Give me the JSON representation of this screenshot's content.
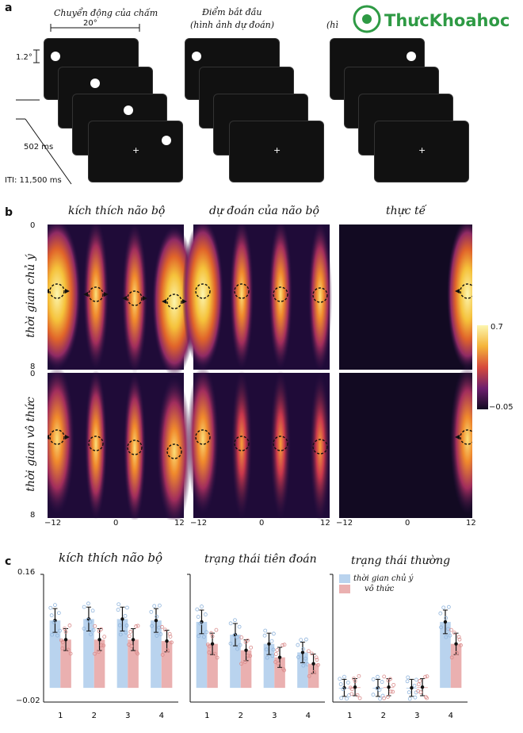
{
  "watermark": {
    "text": "ThưcKhoahoc",
    "brand_colors": [
      "#2e9a44",
      "#1a6fb3"
    ]
  },
  "panel_a": {
    "letter": "a",
    "titles": [
      "Chuyển động của chấm",
      [
        "Điểm bắt đầu",
        "(hình ảnh dự đoán)"
      ],
      [
        "",
        "(hì"
      ]
    ],
    "angle_label": "20°",
    "size_label": "1.2°",
    "duration_label": "502 ms",
    "iti_label": "ITI: 11,500 ms",
    "fixation_glyph": "+"
  },
  "panel_b": {
    "letter": "b",
    "column_titles": [
      "kích thích não bộ",
      "dự đoán của não bộ",
      "thực tế"
    ],
    "row_labels": [
      "thời gian chủ ý",
      "thời gian vô thức"
    ],
    "y_ticks": [
      "0",
      "8"
    ],
    "x_ticks": [
      "−12",
      "0",
      "12"
    ],
    "colorbar": {
      "max": "0.7",
      "min": "−0.05"
    }
  },
  "panel_c": {
    "letter": "c",
    "titles": [
      "kích thích não bộ",
      "trạng thái tiên đoán",
      "trạng thái thường"
    ],
    "y_ticks": [
      "0.16",
      "−0.02"
    ],
    "x_ticks": [
      "1",
      "2",
      "3",
      "4"
    ],
    "legend": [
      "thời gian chủ ý",
      "vô thức"
    ]
  },
  "chart_data": [
    {
      "type": "bar",
      "title": "kích thích não bộ",
      "categories": [
        "1",
        "2",
        "3",
        "4"
      ],
      "ylim": [
        -0.02,
        0.16
      ],
      "series": [
        {
          "name": "thời gian chủ ý",
          "color": "#b9d3ee",
          "values": [
            0.095,
            0.097,
            0.097,
            0.095
          ]
        },
        {
          "name": "vô thức",
          "color": "#eab0b0",
          "values": [
            0.068,
            0.068,
            0.068,
            0.066
          ]
        }
      ]
    },
    {
      "type": "bar",
      "title": "trạng thái tiên đoán",
      "categories": [
        "1",
        "2",
        "3",
        "4"
      ],
      "ylim": [
        -0.02,
        0.16
      ],
      "series": [
        {
          "name": "thời gian chủ ý",
          "color": "#b9d3ee",
          "values": [
            0.093,
            0.075,
            0.062,
            0.05
          ]
        },
        {
          "name": "vô thức",
          "color": "#eab0b0",
          "values": [
            0.062,
            0.053,
            0.043,
            0.034
          ]
        }
      ]
    },
    {
      "type": "bar",
      "title": "trạng thái thường",
      "categories": [
        "1",
        "2",
        "3",
        "4"
      ],
      "ylim": [
        -0.02,
        0.16
      ],
      "series": [
        {
          "name": "thời gian chủ ý",
          "color": "#b9d3ee",
          "values": [
            0.0,
            0.0,
            0.0,
            0.093
          ]
        },
        {
          "name": "vô thức",
          "color": "#eab0b0",
          "values": [
            0.001,
            0.001,
            0.001,
            0.062
          ]
        }
      ]
    }
  ]
}
